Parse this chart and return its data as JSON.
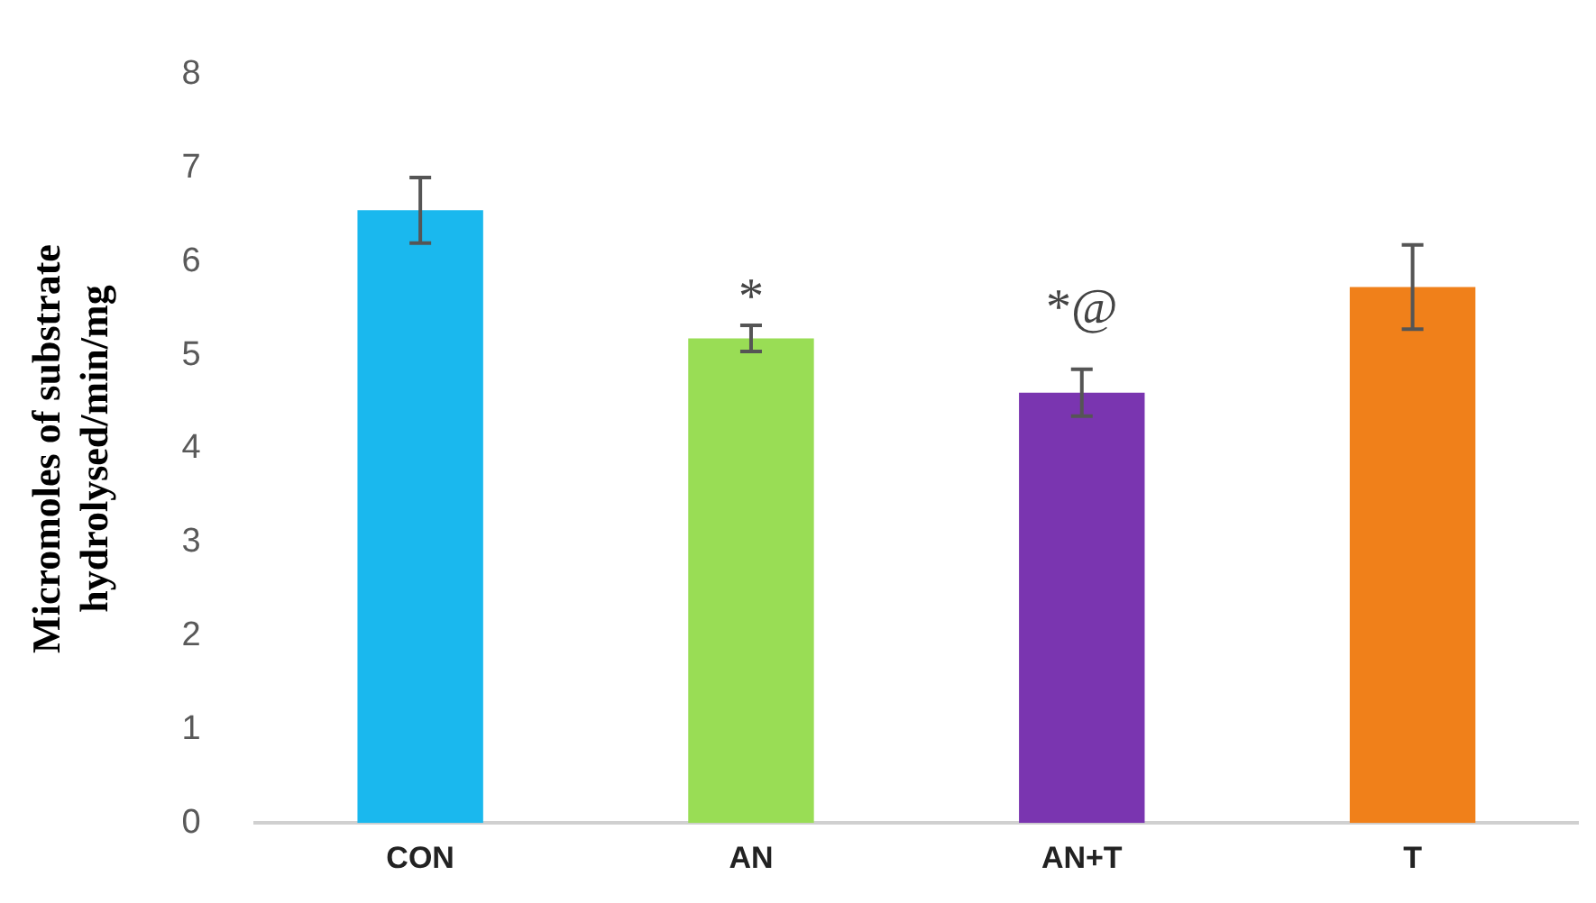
{
  "chart_data": {
    "type": "bar",
    "ylabel": "Micromoles of substrate hydrolysed/min/mg",
    "categories": [
      "CON",
      "AN",
      "AN+T",
      "T"
    ],
    "values": [
      6.55,
      5.18,
      4.6,
      5.73
    ],
    "errors": [
      0.35,
      0.14,
      0.25,
      0.45
    ],
    "colors": [
      "#1ab8ee",
      "#99dd55",
      "#7a35b0",
      "#f0801a"
    ],
    "ylim": [
      0,
      8
    ],
    "yticks": [
      0,
      1,
      2,
      3,
      4,
      5,
      6,
      7,
      8
    ],
    "grid": false,
    "legend": false,
    "annotations": [
      "*",
      "*@"
    ]
  }
}
